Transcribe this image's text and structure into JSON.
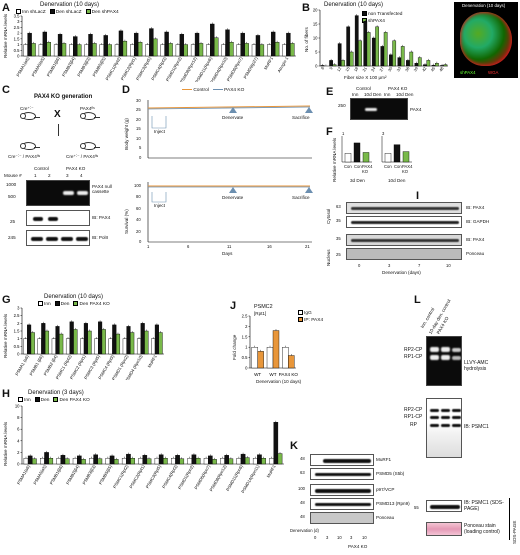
{
  "panels": {
    "A": {
      "letter": "A",
      "title": "Denervation (10 days)",
      "ylabel": "Relative mRNA levels",
      "legend": [
        "Inn shLacZ",
        "Den shLacZ",
        "Den shPAX4"
      ]
    },
    "B": {
      "letter": "B",
      "title": "Denervation (10 days)",
      "ylabel": "No. of fibers",
      "xlabel": "Fiber size X 100 μm²",
      "legend": [
        "non Transfected",
        "shPAX4"
      ],
      "micro_title": "Denervation (10 days)",
      "micro_g": "shPAX4",
      "micro_r": "WGA"
    },
    "C": {
      "letter": "C",
      "title": "PAX4 KO generation",
      "cross_left": "Cre⁺˸⁻",
      "cross_right": "PAX4ᶠˡˢ",
      "result_left": "Cre⁻˸⁻ / PAX4ᶠˡˢ",
      "result_right": "Cre⁺˸⁻ / PAX4ᶠˡˢ",
      "control": "Control",
      "ko": "PAX4 KO",
      "mouse": "Mouse #",
      "lanes": [
        "1",
        "2",
        "3",
        "4"
      ],
      "mw": [
        "1000",
        "500"
      ],
      "mw2": [
        "25",
        "245"
      ],
      "blots": [
        "PAX4 null cassette",
        "IB: PAX4",
        "IB: PolII"
      ]
    },
    "D": {
      "letter": "D",
      "legend": [
        "Control",
        "PAX4 KO"
      ],
      "ylabel1": "Body weight (g)",
      "ylabel2": "Survival (%)",
      "y1ticks": [
        "30",
        "25",
        "20",
        "15",
        "10",
        "5",
        "0"
      ],
      "y2ticks": [
        "100",
        "80",
        "60",
        "40",
        "20",
        "0"
      ],
      "xticks": [
        "1",
        "6",
        "11",
        "16",
        "21"
      ],
      "xlabel": "Days",
      "inject": "Inject",
      "denervate": "Denervate",
      "sacrifice": "Sacrifice"
    },
    "E": {
      "letter": "E",
      "headers": [
        "Control",
        "PAX4 KO"
      ],
      "lanes": [
        "Inn",
        "10d Den",
        "Inn",
        "10d Den"
      ],
      "mw": "250",
      "label": "PAX4"
    },
    "F": {
      "letter": "F",
      "ylabel": "Relative mRNA levels",
      "sub1": {
        "title": "1",
        "lanes": [
          "Con",
          "Con",
          "PAX4 KO"
        ],
        "foot": "3d Den"
      },
      "sub2": {
        "title": "3",
        "lanes": [
          "Con",
          "Con",
          "PAX4 KO"
        ],
        "foot": "10d Den"
      }
    },
    "G": {
      "letter": "G",
      "title": "Denervation (10 days)",
      "ylabel": "Relative mRNA levels",
      "legend": [
        "Inn",
        "Den",
        "Den PAX4 KO"
      ]
    },
    "H": {
      "letter": "H",
      "title": "Denervation (3 days)",
      "ylabel": "Relative mRNA levels",
      "legend": [
        "Inn",
        "Den",
        "Den PAX4 KO"
      ]
    },
    "I": {
      "letter": "I",
      "groups": [
        "Cytosol",
        "Nucleus"
      ],
      "labels": [
        "IB: PAX4",
        "IB: GAPDH",
        "IB: PAX4",
        "Ponceau"
      ],
      "mw": [
        "63",
        "35",
        "35",
        "25"
      ],
      "xticks": [
        "0",
        "3",
        "7",
        "10"
      ],
      "xlabel": "Denervation (days)"
    },
    "J": {
      "letter": "J",
      "title": "PSMC2",
      "subtitle": "[Rpt1]",
      "ylabel": "Fold change",
      "legend": [
        "IgG",
        "IP: PAX4"
      ],
      "groups": [
        "WT",
        "WT",
        "PAX4 KO"
      ],
      "foot": "Denervation (10 days)"
    },
    "K": {
      "letter": "K",
      "labels": [
        "MuRF1",
        "PSMD5 (S5b)",
        "p97/VCP",
        "PSMD13 (Rpn9)",
        "Ponceau"
      ],
      "mw": [
        "48",
        "63",
        "100",
        "48",
        "48"
      ],
      "xticks": [
        "0",
        "3",
        "10",
        "3",
        "10"
      ],
      "xlabel": "Denervation (d)",
      "ko": "PAX4 KO"
    },
    "L": {
      "letter": "L",
      "lanes": [
        "Inn. control",
        "10-day den. control",
        "PAX4 KO"
      ],
      "gel_labels": [
        "RP2-CP",
        "RP1-CP"
      ],
      "blot_labels": [
        "RP2-CP",
        "RP1-CP",
        "RP"
      ],
      "side1": "LLVY-AMC hydrolysis",
      "side2": "IB: PSMC1",
      "side3": "IB: PSMC1 (SDS-PAGE)",
      "side4": "Ponceau stain (loading control)",
      "mw": "55",
      "vert": "SDS-PAGE"
    }
  },
  "chart_data": [
    {
      "panel": "A",
      "type": "bar",
      "categories": [
        "PSMA1(α6)",
        "PSMA5(α5)",
        "PSMB1(β6)",
        "PSMB2(β4)",
        "PSMB3(β3)",
        "PSMB5(β5)",
        "PSMC1(Rpt2)",
        "PSMC2(Rpt1)",
        "PSMC3(Rpt5)",
        "PSMC4(Rpt3)",
        "PSMD1(Rpn2)",
        "PSMD8(Rpn12)",
        "PSMD11(Rpn6)",
        "PSMD4(Rpn10)",
        "PSMD6(Rpn7)",
        "PSMD9(p27)",
        "MuRF1",
        "Atrogin-1"
      ],
      "series": [
        {
          "name": "Inn shLacZ",
          "color": "#ffffff",
          "values": [
            1,
            1,
            1,
            1,
            1,
            1,
            1,
            1,
            1,
            1,
            1,
            1,
            1,
            1,
            1,
            1,
            1,
            1
          ]
        },
        {
          "name": "Den shLacZ",
          "color": "#111111",
          "values": [
            2.0,
            2.1,
            1.9,
            1.7,
            1.9,
            1.8,
            2.2,
            2.0,
            2.4,
            2.1,
            1.9,
            2.0,
            2.8,
            2.3,
            2.0,
            1.8,
            2.1,
            2.0
          ]
        },
        {
          "name": "Den shPAX4",
          "color": "#79b94a",
          "values": [
            1.1,
            1.2,
            1.1,
            1.0,
            1.1,
            1.0,
            1.3,
            1.2,
            1.5,
            1.1,
            1.0,
            1.1,
            1.6,
            1.2,
            1.1,
            1.0,
            1.2,
            1.1
          ]
        }
      ],
      "ylim": [
        0,
        3.5
      ],
      "yticks": [
        "3.5",
        "3",
        "2.5",
        "2",
        "1.5",
        "1",
        "0.5",
        "0"
      ]
    },
    {
      "panel": "B",
      "type": "bar",
      "categories": [
        "6",
        "9",
        "12",
        "15",
        "18",
        "21",
        "24",
        "27",
        "30",
        "33",
        "36",
        "39",
        "42",
        "45",
        "48"
      ],
      "series": [
        {
          "name": "non Transfected",
          "color": "#111111",
          "values": [
            0.2,
            2,
            8,
            14,
            18,
            16,
            10,
            7,
            4,
            3,
            2,
            1,
            0.5,
            0.3,
            0.2
          ]
        },
        {
          "name": "shPAX4",
          "color": "#79b94a",
          "values": [
            0,
            0.5,
            2,
            5,
            9,
            12,
            14,
            12,
            9,
            7,
            5,
            3,
            2,
            1,
            0.5
          ]
        }
      ],
      "ylim": [
        0,
        20
      ],
      "yticks": [
        "20",
        "15",
        "10",
        "5",
        "0"
      ]
    },
    {
      "panel": "G",
      "type": "bar",
      "categories": [
        "PSMA1 (α6)",
        "PSMB1 (β6)",
        "PSMB2 (β4)",
        "PSMC1 (Rpt2)",
        "PSMC2 (Rpt1)",
        "PSMC3 (Rpt5)",
        "PSMC4 (Rpt3)",
        "PSMD1 (Rpn2)",
        "PSMD4 (Rpn10)",
        "MuRF1"
      ],
      "series": [
        {
          "name": "Inn",
          "color": "#ffffff",
          "values": [
            1,
            1,
            1,
            1,
            1,
            1,
            1,
            1,
            1,
            1
          ]
        },
        {
          "name": "Den",
          "color": "#111111",
          "values": [
            1.9,
            2.0,
            1.8,
            2.1,
            2.0,
            2.1,
            1.9,
            1.8,
            2.0,
            1.9
          ]
        },
        {
          "name": "Den PAX4 KO",
          "color": "#79b94a",
          "values": [
            1.4,
            1.5,
            1.3,
            1.6,
            1.5,
            1.6,
            1.3,
            1.4,
            1.5,
            1.4
          ]
        }
      ],
      "ylim": [
        0,
        3
      ],
      "yticks": [
        "3",
        "2.5",
        "2",
        "1.5",
        "1",
        "0.5",
        "0"
      ]
    },
    {
      "panel": "H",
      "type": "bar",
      "categories": [
        "PSMA1(α6)",
        "PSMA5(α5)",
        "PSMB1(β6)",
        "PSMB2(β4)",
        "PSMB3(β3)",
        "PSMB5(β5)",
        "PSMC1(Rpt2)",
        "PSMC2(Rpt1)",
        "PSMC3(Rpt5)",
        "PSMC4(Rpt3)",
        "PSMD1(Rpn2)",
        "PSMD6(Rpn7)",
        "PSMD8(Rpn12)",
        "PSMD11(Rpn6)",
        "PSMD14(Rpn11)",
        "MuRF1"
      ],
      "series": [
        {
          "name": "Inn",
          "color": "#ffffff",
          "values": [
            1,
            1,
            1,
            1,
            1,
            1,
            1,
            1,
            1,
            1,
            1,
            1,
            1,
            1,
            1,
            1
          ]
        },
        {
          "name": "Den",
          "color": "#111111",
          "values": [
            1.4,
            2.0,
            1.5,
            1.4,
            1.6,
            1.4,
            1.7,
            1.5,
            1.6,
            1.5,
            1.6,
            1.4,
            1.5,
            1.7,
            1.6,
            7.2
          ]
        },
        {
          "name": "Den PAX4 KO",
          "color": "#79b94a",
          "values": [
            0.9,
            1.0,
            0.9,
            0.8,
            0.9,
            0.8,
            1.0,
            0.9,
            1.0,
            0.9,
            1.0,
            0.8,
            0.9,
            1.1,
            1.0,
            1.8
          ]
        }
      ],
      "ylim": [
        0,
        10
      ],
      "yticks": [
        "10",
        "8",
        "6",
        "4",
        "2",
        "0"
      ]
    },
    {
      "panel": "J",
      "type": "bar",
      "categories": [
        "WT",
        "WT",
        "PAX4 KO"
      ],
      "series": [
        {
          "name": "IgG",
          "color": "#ffffff",
          "values": [
            1.0,
            1.0,
            1.0
          ]
        },
        {
          "name": "IP: PAX4",
          "color": "#e8963a",
          "values": [
            0.8,
            1.8,
            0.6
          ]
        }
      ],
      "ylim": [
        0,
        2.5
      ],
      "yticks": [
        "2.5",
        "2",
        "1.5",
        "1",
        "0.5",
        "0"
      ]
    },
    {
      "panel": "F",
      "type": "bar",
      "categories": [
        "Con",
        "Con",
        "PAX4 KO",
        "Con",
        "Con",
        "PAX4 KO"
      ],
      "series": [
        {
          "name": "",
          "color": "#111111",
          "values": [
            1.0,
            2.2,
            1.1,
            1.0,
            2.0,
            1.2
          ]
        }
      ],
      "ylim": [
        0,
        3
      ]
    }
  ]
}
